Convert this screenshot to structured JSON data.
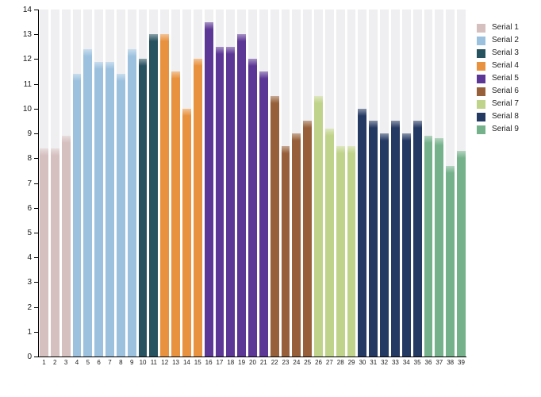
{
  "chart_data": {
    "type": "bar",
    "title": "",
    "xlabel": "",
    "ylabel": "",
    "y_axis": {
      "min": 0,
      "max": 14,
      "tick_step": 1
    },
    "legend_position": "right",
    "grid": "vertical category tracks only",
    "track_color": "#efeef0",
    "series": [
      {
        "name": "Serial 1",
        "color": "#d5bfbf",
        "categories": [
          "1",
          "2",
          "3"
        ],
        "values": [
          8.4,
          8.4,
          8.9
        ]
      },
      {
        "name": "Serial 2",
        "color": "#9cc1de",
        "categories": [
          "4",
          "5",
          "6",
          "7",
          "8",
          "9"
        ],
        "values": [
          11.4,
          12.4,
          11.9,
          11.9,
          11.4,
          12.4
        ]
      },
      {
        "name": "Serial 3",
        "color": "#27525f",
        "categories": [
          "10",
          "11"
        ],
        "values": [
          12.0,
          13.0
        ]
      },
      {
        "name": "Serial 4",
        "color": "#e8923f",
        "categories": [
          "12",
          "13",
          "14",
          "15"
        ],
        "values": [
          13.0,
          11.5,
          10.0,
          12.0
        ]
      },
      {
        "name": "Serial 5",
        "color": "#5d3795",
        "categories": [
          "16",
          "17",
          "18",
          "19",
          "20",
          "21"
        ],
        "values": [
          13.5,
          12.5,
          12.5,
          13.0,
          12.0,
          11.5
        ]
      },
      {
        "name": "Serial 6",
        "color": "#97603a",
        "categories": [
          "22",
          "23",
          "24",
          "25"
        ],
        "values": [
          10.5,
          8.5,
          9.0,
          9.5
        ]
      },
      {
        "name": "Serial 7",
        "color": "#c0d38a",
        "categories": [
          "26",
          "27",
          "28",
          "29"
        ],
        "values": [
          10.5,
          9.2,
          8.5,
          8.5
        ]
      },
      {
        "name": "Serial 8",
        "color": "#253a63",
        "categories": [
          "30",
          "31",
          "32",
          "33",
          "34",
          "35"
        ],
        "values": [
          10.0,
          9.5,
          9.0,
          9.5,
          9.0,
          9.5
        ]
      },
      {
        "name": "Serial 9",
        "color": "#75b18b",
        "categories": [
          "36",
          "37",
          "38",
          "39"
        ],
        "values": [
          8.9,
          8.8,
          7.7,
          8.3
        ]
      }
    ]
  }
}
